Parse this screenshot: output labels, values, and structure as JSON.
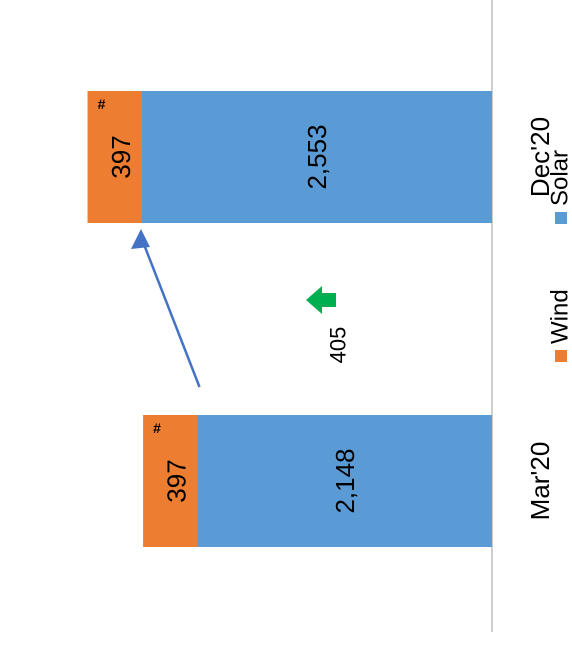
{
  "chart_data": {
    "type": "bar",
    "stacked": true,
    "orientation": "horizontal-bars-rotated",
    "categories": [
      "Mar'20",
      "Dec'20"
    ],
    "series": [
      {
        "name": "Solar",
        "values": [
          2148,
          2553
        ],
        "color": "#5B9BD5"
      },
      {
        "name": "Wind",
        "values": [
          397,
          397
        ],
        "color": "#ED7D31"
      }
    ],
    "data_labels": {
      "Solar": [
        "2,148",
        "2,553"
      ],
      "Wind": [
        "397",
        "397"
      ]
    },
    "wind_footnote_marker": "#",
    "change_annotation": {
      "label": "405",
      "from_category": "Mar'20",
      "to_category": "Dec'20",
      "direction": "up",
      "indicator_color": "#00B050",
      "arrow_color": "#4472C4"
    },
    "legend": {
      "position": "bottom",
      "entries": [
        "Wind",
        "Solar"
      ]
    },
    "grid": false,
    "value_axis_range": [
      0,
      2950
    ]
  }
}
